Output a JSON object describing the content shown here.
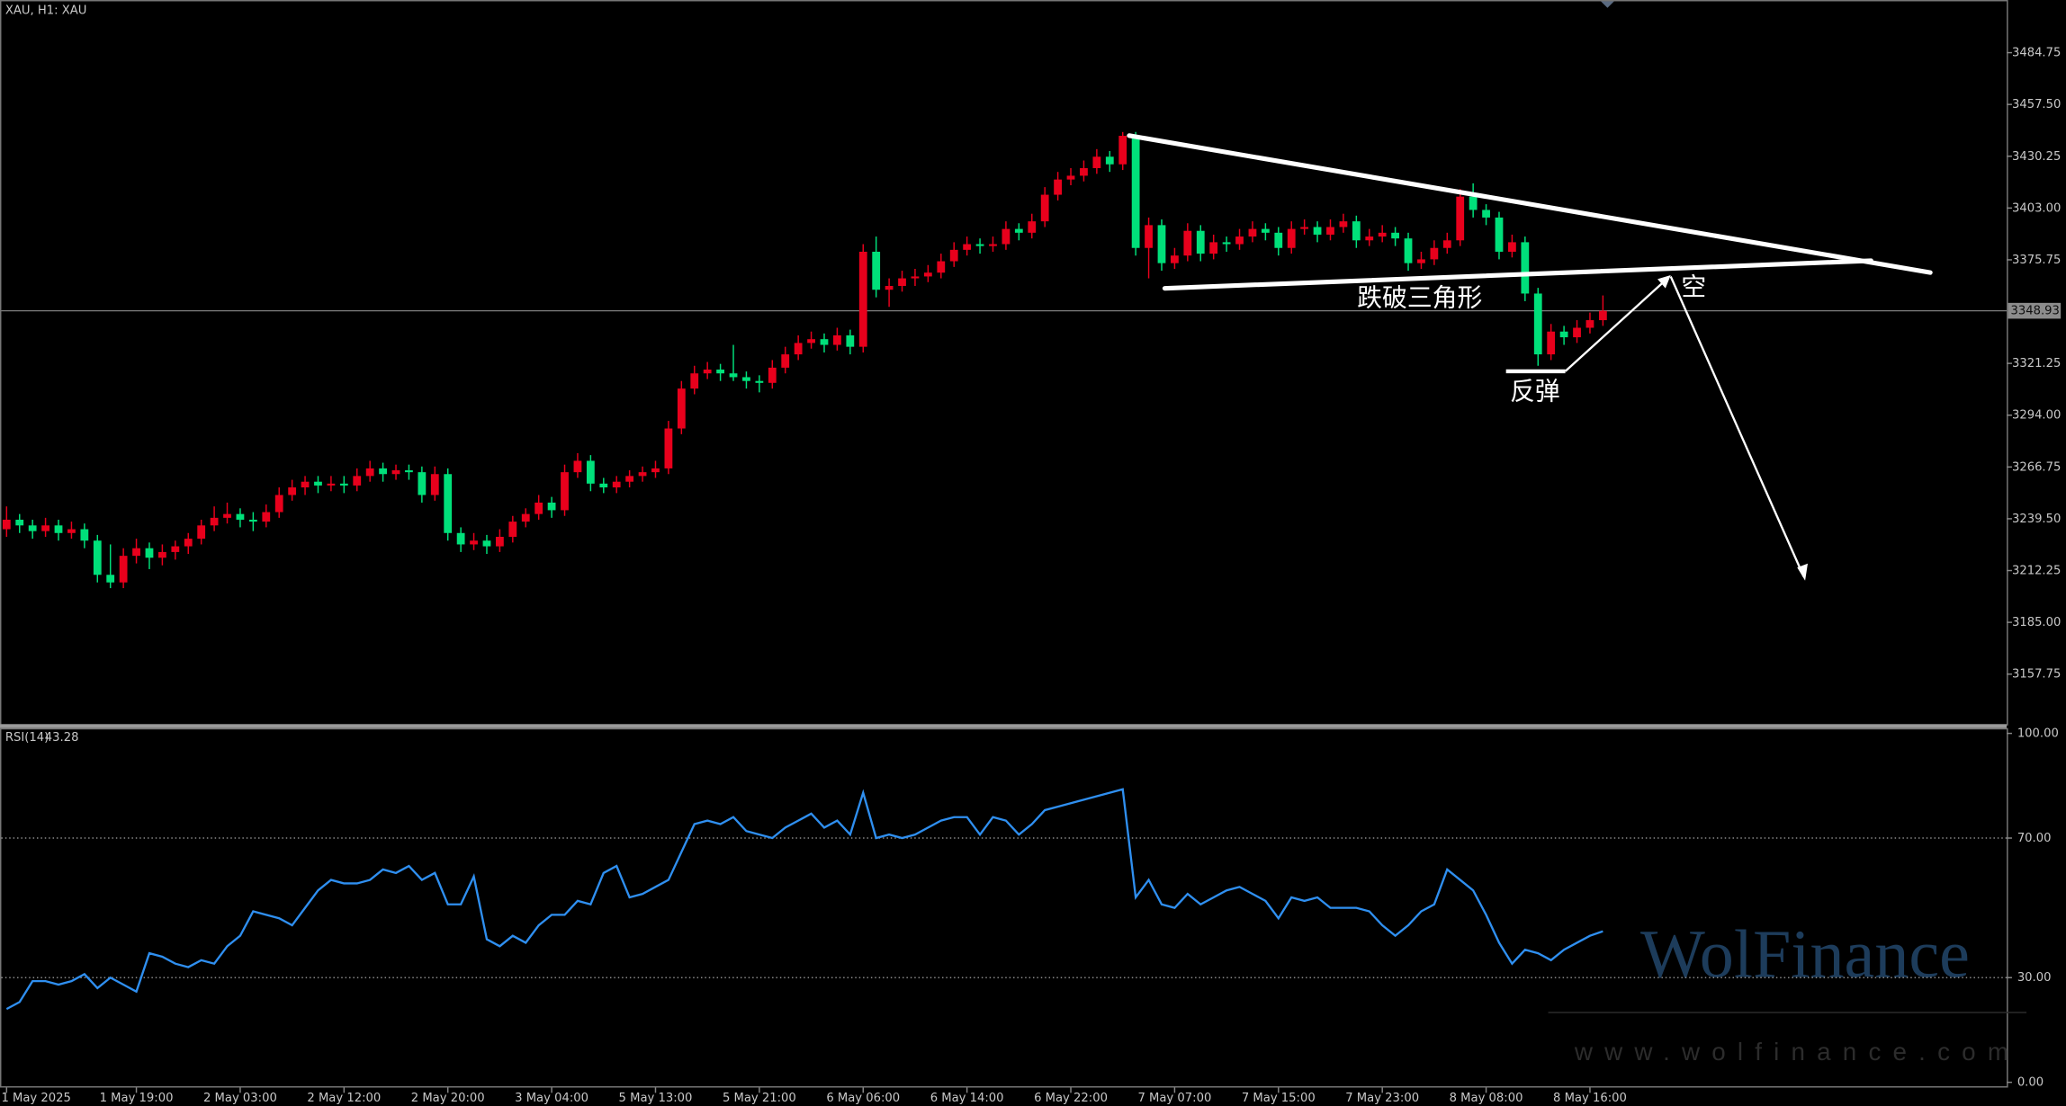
{
  "chart_data": {
    "type": "candlestick",
    "title": "XAU, H1:  XAU",
    "up_color": "#e8001c",
    "down_color": "#00e07a",
    "ylim": [
      3131.42,
      3512.46
    ],
    "yticks": [
      {
        "value": 3484.75,
        "label": "3484.75"
      },
      {
        "value": 3457.5,
        "label": "3457.50"
      },
      {
        "value": 3430.25,
        "label": "3430.25"
      },
      {
        "value": 3403,
        "label": "3403.00"
      },
      {
        "value": 3375.75,
        "label": "3375.75"
      },
      {
        "value": 3321.25,
        "label": "3321.25"
      },
      {
        "value": 3294,
        "label": "3294.00"
      },
      {
        "value": 3266.75,
        "label": "3266.75"
      },
      {
        "value": 3239.5,
        "label": "3239.50"
      },
      {
        "value": 3212.25,
        "label": "3212.25"
      },
      {
        "value": 3185,
        "label": "3185.00"
      },
      {
        "value": 3157.75,
        "label": "3157.75"
      }
    ],
    "last_price": 3348.93,
    "categories": [
      "1 May 2025",
      null,
      null,
      null,
      null,
      null,
      null,
      null,
      null,
      null,
      "1 May 19:00",
      null,
      null,
      null,
      null,
      null,
      null,
      null,
      "2 May 03:00",
      null,
      null,
      null,
      null,
      null,
      null,
      null,
      "2 May 12:00",
      null,
      null,
      null,
      null,
      null,
      null,
      null,
      "2 May 20:00",
      null,
      null,
      null,
      null,
      null,
      null,
      null,
      "3 May 04:00",
      null,
      null,
      null,
      null,
      null,
      null,
      null,
      "5 May 13:00",
      null,
      null,
      null,
      null,
      null,
      null,
      null,
      "5 May 21:00",
      null,
      null,
      null,
      null,
      null,
      null,
      null,
      "6 May 06:00",
      null,
      null,
      null,
      null,
      null,
      null,
      null,
      "6 May 14:00",
      null,
      null,
      null,
      null,
      null,
      null,
      null,
      "6 May 22:00",
      null,
      null,
      null,
      null,
      null,
      null,
      null,
      "7 May 07:00",
      null,
      null,
      null,
      null,
      null,
      null,
      null,
      "7 May 15:00",
      null,
      null,
      null,
      null,
      null,
      null,
      null,
      "7 May 23:00",
      null,
      null,
      null,
      null,
      null,
      null,
      null,
      "8 May 08:00",
      null,
      null,
      null,
      null,
      null,
      null,
      null,
      "8 May 16:00",
      null
    ],
    "ohlc": [
      [
        3234,
        3246,
        3230,
        3239
      ],
      [
        3239,
        3242,
        3232,
        3236
      ],
      [
        3236,
        3239,
        3229,
        3233
      ],
      [
        3233,
        3240,
        3230,
        3236
      ],
      [
        3236,
        3239,
        3228,
        3232
      ],
      [
        3232,
        3238,
        3229,
        3234
      ],
      [
        3234,
        3237,
        3224,
        3228
      ],
      [
        3228,
        3231,
        3206,
        3210
      ],
      [
        3210,
        3226,
        3203,
        3206
      ],
      [
        3206,
        3224,
        3203,
        3220
      ],
      [
        3220,
        3229,
        3216,
        3224
      ],
      [
        3224,
        3227,
        3213,
        3219
      ],
      [
        3219,
        3226,
        3215,
        3222
      ],
      [
        3222,
        3228,
        3218,
        3225
      ],
      [
        3225,
        3232,
        3221,
        3229
      ],
      [
        3229,
        3239,
        3226,
        3236
      ],
      [
        3236,
        3246,
        3233,
        3240
      ],
      [
        3240,
        3248,
        3237,
        3242
      ],
      [
        3242,
        3245,
        3235,
        3239
      ],
      [
        3239,
        3243,
        3233,
        3238
      ],
      [
        3238,
        3247,
        3235,
        3243
      ],
      [
        3243,
        3256,
        3240,
        3252
      ],
      [
        3252,
        3260,
        3249,
        3256
      ],
      [
        3256,
        3262,
        3252,
        3259
      ],
      [
        3259,
        3262,
        3253,
        3257
      ],
      [
        3257,
        3262,
        3254,
        3258
      ],
      [
        3258,
        3262,
        3253,
        3257
      ],
      [
        3257,
        3266,
        3254,
        3262
      ],
      [
        3262,
        3270,
        3259,
        3266
      ],
      [
        3266,
        3269,
        3259,
        3263
      ],
      [
        3263,
        3268,
        3260,
        3265
      ],
      [
        3265,
        3268,
        3260,
        3264
      ],
      [
        3264,
        3267,
        3248,
        3252
      ],
      [
        3252,
        3267,
        3249,
        3263
      ],
      [
        3263,
        3266,
        3228,
        3232
      ],
      [
        3232,
        3235,
        3222,
        3226
      ],
      [
        3226,
        3232,
        3223,
        3228
      ],
      [
        3228,
        3231,
        3221,
        3225
      ],
      [
        3225,
        3234,
        3222,
        3230
      ],
      [
        3230,
        3241,
        3227,
        3238
      ],
      [
        3238,
        3245,
        3235,
        3242
      ],
      [
        3242,
        3252,
        3239,
        3248
      ],
      [
        3248,
        3251,
        3240,
        3244
      ],
      [
        3244,
        3268,
        3241,
        3264
      ],
      [
        3264,
        3274,
        3261,
        3270
      ],
      [
        3270,
        3273,
        3254,
        3258
      ],
      [
        3258,
        3261,
        3253,
        3256
      ],
      [
        3256,
        3262,
        3253,
        3259
      ],
      [
        3259,
        3265,
        3256,
        3262
      ],
      [
        3262,
        3267,
        3259,
        3264
      ],
      [
        3264,
        3270,
        3261,
        3266
      ],
      [
        3266,
        3291,
        3263,
        3287
      ],
      [
        3287,
        3312,
        3284,
        3308
      ],
      [
        3308,
        3320,
        3305,
        3316
      ],
      [
        3316,
        3322,
        3313,
        3318
      ],
      [
        3318,
        3321,
        3312,
        3316
      ],
      [
        3316,
        3331,
        3312,
        3314
      ],
      [
        3314,
        3317,
        3308,
        3312
      ],
      [
        3312,
        3315,
        3306,
        3311
      ],
      [
        3311,
        3323,
        3308,
        3319
      ],
      [
        3319,
        3330,
        3316,
        3326
      ],
      [
        3326,
        3336,
        3323,
        3332
      ],
      [
        3332,
        3338,
        3329,
        3334
      ],
      [
        3334,
        3337,
        3327,
        3331
      ],
      [
        3331,
        3340,
        3328,
        3336
      ],
      [
        3336,
        3339,
        3326,
        3330
      ],
      [
        3330,
        3384,
        3327,
        3380
      ],
      [
        3380,
        3388,
        3356,
        3360
      ],
      [
        3360,
        3366,
        3351,
        3362
      ],
      [
        3362,
        3370,
        3359,
        3366
      ],
      [
        3366,
        3371,
        3362,
        3367
      ],
      [
        3367,
        3373,
        3364,
        3369
      ],
      [
        3369,
        3379,
        3366,
        3375
      ],
      [
        3375,
        3385,
        3372,
        3381
      ],
      [
        3381,
        3388,
        3378,
        3384
      ],
      [
        3384,
        3387,
        3379,
        3383
      ],
      [
        3383,
        3388,
        3380,
        3384
      ],
      [
        3384,
        3396,
        3381,
        3392
      ],
      [
        3392,
        3395,
        3386,
        3390
      ],
      [
        3390,
        3400,
        3387,
        3396
      ],
      [
        3396,
        3414,
        3393,
        3410
      ],
      [
        3410,
        3422,
        3407,
        3418
      ],
      [
        3418,
        3424,
        3415,
        3420
      ],
      [
        3420,
        3428,
        3417,
        3424
      ],
      [
        3424,
        3434,
        3421,
        3430
      ],
      [
        3430,
        3433,
        3422,
        3426
      ],
      [
        3426,
        3443,
        3423,
        3441
      ],
      [
        3441,
        3443,
        3378,
        3382
      ],
      [
        3382,
        3398,
        3366,
        3394
      ],
      [
        3394,
        3397,
        3370,
        3374
      ],
      [
        3374,
        3382,
        3371,
        3378
      ],
      [
        3378,
        3395,
        3375,
        3391
      ],
      [
        3391,
        3394,
        3375,
        3379
      ],
      [
        3379,
        3389,
        3376,
        3385
      ],
      [
        3385,
        3388,
        3380,
        3384
      ],
      [
        3384,
        3392,
        3381,
        3388
      ],
      [
        3388,
        3396,
        3385,
        3392
      ],
      [
        3392,
        3395,
        3386,
        3390
      ],
      [
        3390,
        3393,
        3378,
        3382
      ],
      [
        3382,
        3396,
        3379,
        3392
      ],
      [
        3392,
        3397,
        3389,
        3393
      ],
      [
        3393,
        3396,
        3385,
        3389
      ],
      [
        3389,
        3397,
        3386,
        3393
      ],
      [
        3393,
        3400,
        3390,
        3396
      ],
      [
        3396,
        3399,
        3382,
        3386
      ],
      [
        3386,
        3392,
        3383,
        3388
      ],
      [
        3388,
        3394,
        3385,
        3390
      ],
      [
        3390,
        3393,
        3383,
        3387
      ],
      [
        3387,
        3390,
        3370,
        3374
      ],
      [
        3374,
        3380,
        3371,
        3376
      ],
      [
        3376,
        3386,
        3373,
        3382
      ],
      [
        3382,
        3390,
        3379,
        3386
      ],
      [
        3386,
        3413,
        3383,
        3409
      ],
      [
        3409,
        3416,
        3398,
        3402
      ],
      [
        3402,
        3405,
        3394,
        3398
      ],
      [
        3398,
        3401,
        3376,
        3380
      ],
      [
        3380,
        3389,
        3377,
        3385
      ],
      [
        3385,
        3388,
        3354,
        3358
      ],
      [
        3358,
        3361,
        3320,
        3326
      ],
      [
        3326,
        3342,
        3323,
        3338
      ],
      [
        3338,
        3341,
        3331,
        3335
      ],
      [
        3335,
        3344,
        3332,
        3340
      ],
      [
        3340,
        3348,
        3337,
        3344
      ],
      [
        3344,
        3357,
        3341,
        3348.93
      ]
    ],
    "annotations": [
      "跌破三角形",
      "反弹",
      "空"
    ],
    "rsi": {
      "title": "RSI(14)",
      "last": 43.28,
      "color": "#2f8ff0",
      "ylim": [
        0,
        100
      ],
      "yticks": [
        {
          "value": 100,
          "label": "100.00"
        },
        {
          "value": 70,
          "label": "70.00"
        },
        {
          "value": 30,
          "label": "30.00"
        },
        {
          "value": 0,
          "label": "0.00"
        }
      ],
      "levels": [
        70,
        30
      ],
      "values": [
        21,
        23,
        29,
        29,
        28,
        29,
        31,
        27,
        30,
        28,
        26,
        37,
        36,
        34,
        33,
        35,
        34,
        39,
        42,
        49,
        48,
        47,
        45,
        50,
        55,
        58,
        57,
        57,
        58,
        61,
        60,
        62,
        58,
        60,
        51,
        51,
        59,
        41,
        39,
        42,
        40,
        45,
        48,
        48,
        52,
        51,
        60,
        62,
        53,
        54,
        56,
        58,
        66,
        74,
        75,
        74,
        76,
        72,
        71,
        70,
        73,
        75,
        77,
        73,
        75,
        71,
        83,
        70,
        71,
        70,
        71,
        73,
        75,
        76,
        76,
        71,
        76,
        75,
        71,
        74,
        78,
        79,
        80,
        81,
        82,
        83,
        84,
        53,
        58,
        51,
        50,
        54,
        51,
        53,
        55,
        56,
        54,
        52,
        47,
        53,
        52,
        53,
        50,
        50,
        50,
        49,
        45,
        42,
        45,
        49,
        51,
        61,
        58,
        55,
        48,
        40,
        34,
        38,
        37,
        35,
        38,
        40,
        42,
        43.28
      ]
    },
    "watermark": {
      "brand": "WolFinance",
      "url": "www.wolfinance.com"
    }
  }
}
